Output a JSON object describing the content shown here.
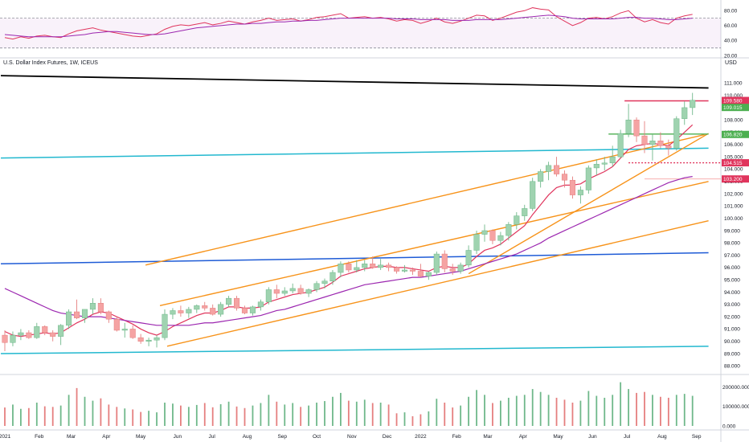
{
  "chart_data": {
    "type": "candlestick",
    "title": "U.S. Dollar Index Futures, 1W, ICEUS",
    "currency_label": "USD",
    "colors": {
      "up_body": "#9fd3b0",
      "down_body": "#f5a3a3",
      "neutral_body": "#787b86",
      "ma_fast": "#e0355d",
      "ma_slow": "#9c27b0",
      "channel": "#f7931a",
      "cyan": "#22b8cf",
      "blue": "#1e5bd6",
      "black": "#000000",
      "red_level": "#e0355d",
      "green_level": "#4caf50",
      "rsi": "#e0355d",
      "rsi_signal": "#9c27b0",
      "vol_up": "#9fd3b0",
      "vol_down": "#f5a3a3"
    },
    "x_labels": [
      "2021",
      "Feb",
      "Mar",
      "Apr",
      "May",
      "Jun",
      "Jul",
      "Aug",
      "Sep",
      "Oct",
      "Nov",
      "Dec",
      "2022",
      "Feb",
      "Mar",
      "Apr",
      "May",
      "Jun",
      "Jul",
      "Aug",
      "Sep"
    ],
    "x_label_weeks": [
      0,
      4.3,
      8.3,
      12.7,
      17,
      21.6,
      25.9,
      30.3,
      34.7,
      39,
      43.4,
      47.8,
      52,
      56.5,
      60.4,
      64.8,
      69.2,
      73.5,
      77.8,
      82.2,
      86.5
    ],
    "price_axis": {
      "min": 87.5,
      "max": 112,
      "ticks": [
        88,
        89,
        90,
        91,
        92,
        93,
        94,
        95,
        96,
        97,
        98,
        99,
        100,
        101,
        102,
        103,
        104,
        105,
        106,
        107,
        108,
        109,
        110,
        111
      ]
    },
    "rsi_axis": {
      "min": 20,
      "max": 90,
      "ticks": [
        20,
        40,
        60,
        80
      ],
      "levels": [
        30,
        70
      ]
    },
    "volume_axis": {
      "min": 0,
      "max": 240000,
      "ticks": [
        0,
        100000,
        200000
      ],
      "tick_labels": [
        "0.000",
        "100000.000",
        "200000.000"
      ]
    },
    "price_tags": [
      {
        "value": 109.58,
        "label": "109.580",
        "color": "#e0355d"
      },
      {
        "value": 109.015,
        "label": "109.015",
        "color": "#4caf50"
      },
      {
        "value": 106.82,
        "label": "106.820",
        "color": "#4caf50"
      },
      {
        "value": 104.515,
        "label": "104.515",
        "color": "#e0355d"
      },
      {
        "value": 103.2,
        "label": "103.200",
        "color": "#e0355d"
      }
    ],
    "candles": [
      {
        "o": 90.5,
        "h": 90.9,
        "l": 89.2,
        "c": 89.9
      },
      {
        "o": 89.9,
        "h": 90.8,
        "l": 89.6,
        "c": 90.5
      },
      {
        "o": 90.5,
        "h": 91.0,
        "l": 90.1,
        "c": 90.7
      },
      {
        "o": 90.7,
        "h": 90.9,
        "l": 90.2,
        "c": 90.3
      },
      {
        "o": 90.3,
        "h": 91.5,
        "l": 90.2,
        "c": 91.2
      },
      {
        "o": 91.2,
        "h": 91.3,
        "l": 90.5,
        "c": 90.7
      },
      {
        "o": 90.7,
        "h": 90.9,
        "l": 90.0,
        "c": 90.4
      },
      {
        "o": 90.4,
        "h": 91.4,
        "l": 89.7,
        "c": 91.3
      },
      {
        "o": 91.3,
        "h": 92.6,
        "l": 91.0,
        "c": 92.4
      },
      {
        "o": 92.4,
        "h": 93.4,
        "l": 91.8,
        "c": 91.9
      },
      {
        "o": 91.9,
        "h": 92.6,
        "l": 91.5,
        "c": 92.6
      },
      {
        "o": 92.6,
        "h": 93.5,
        "l": 92.2,
        "c": 93.1
      },
      {
        "o": 93.1,
        "h": 93.5,
        "l": 92.2,
        "c": 92.4
      },
      {
        "o": 92.4,
        "h": 92.5,
        "l": 91.5,
        "c": 91.8
      },
      {
        "o": 91.8,
        "h": 92.0,
        "l": 90.8,
        "c": 90.9
      },
      {
        "o": 90.9,
        "h": 91.5,
        "l": 90.3,
        "c": 91.0
      },
      {
        "o": 91.0,
        "h": 91.3,
        "l": 90.2,
        "c": 90.3
      },
      {
        "o": 90.3,
        "h": 90.6,
        "l": 89.8,
        "c": 90.0
      },
      {
        "o": 90.0,
        "h": 90.3,
        "l": 89.6,
        "c": 90.1
      },
      {
        "o": 90.1,
        "h": 90.5,
        "l": 89.5,
        "c": 90.3
      },
      {
        "o": 90.3,
        "h": 92.6,
        "l": 90.1,
        "c": 92.2
      },
      {
        "o": 92.2,
        "h": 92.7,
        "l": 91.8,
        "c": 92.5
      },
      {
        "o": 92.5,
        "h": 92.9,
        "l": 92.0,
        "c": 92.3
      },
      {
        "o": 92.3,
        "h": 92.8,
        "l": 91.9,
        "c": 92.6
      },
      {
        "o": 92.6,
        "h": 93.0,
        "l": 92.3,
        "c": 92.9
      },
      {
        "o": 92.9,
        "h": 93.2,
        "l": 92.5,
        "c": 92.7
      },
      {
        "o": 92.7,
        "h": 93.0,
        "l": 92.1,
        "c": 92.2
      },
      {
        "o": 92.2,
        "h": 93.2,
        "l": 92.0,
        "c": 93.0
      },
      {
        "o": 93.0,
        "h": 93.7,
        "l": 92.8,
        "c": 93.5
      },
      {
        "o": 93.5,
        "h": 93.7,
        "l": 92.5,
        "c": 92.7
      },
      {
        "o": 92.7,
        "h": 92.9,
        "l": 92.2,
        "c": 92.3
      },
      {
        "o": 92.3,
        "h": 92.9,
        "l": 92.1,
        "c": 92.8
      },
      {
        "o": 92.8,
        "h": 93.4,
        "l": 92.5,
        "c": 93.2
      },
      {
        "o": 93.2,
        "h": 94.4,
        "l": 93.0,
        "c": 94.2
      },
      {
        "o": 94.2,
        "h": 94.6,
        "l": 93.5,
        "c": 93.9
      },
      {
        "o": 93.9,
        "h": 94.4,
        "l": 93.7,
        "c": 94.1
      },
      {
        "o": 94.1,
        "h": 94.7,
        "l": 93.9,
        "c": 94.3
      },
      {
        "o": 94.3,
        "h": 94.6,
        "l": 93.8,
        "c": 93.9
      },
      {
        "o": 93.9,
        "h": 94.3,
        "l": 93.6,
        "c": 94.2
      },
      {
        "o": 94.2,
        "h": 94.9,
        "l": 94.0,
        "c": 94.7
      },
      {
        "o": 94.7,
        "h": 95.1,
        "l": 94.3,
        "c": 94.9
      },
      {
        "o": 94.9,
        "h": 95.8,
        "l": 94.6,
        "c": 95.6
      },
      {
        "o": 95.6,
        "h": 96.5,
        "l": 95.2,
        "c": 96.3
      },
      {
        "o": 96.3,
        "h": 96.5,
        "l": 95.6,
        "c": 95.8
      },
      {
        "o": 95.8,
        "h": 96.6,
        "l": 95.6,
        "c": 96.0
      },
      {
        "o": 96.0,
        "h": 96.6,
        "l": 95.7,
        "c": 96.3
      },
      {
        "o": 96.3,
        "h": 96.9,
        "l": 95.9,
        "c": 96.0
      },
      {
        "o": 96.0,
        "h": 96.7,
        "l": 95.8,
        "c": 96.2
      },
      {
        "o": 96.2,
        "h": 96.4,
        "l": 95.7,
        "c": 96.0
      },
      {
        "o": 96.0,
        "h": 96.1,
        "l": 95.5,
        "c": 95.7
      },
      {
        "o": 95.7,
        "h": 96.2,
        "l": 95.6,
        "c": 95.8
      },
      {
        "o": 95.8,
        "h": 96.0,
        "l": 95.4,
        "c": 95.7
      },
      {
        "o": 95.7,
        "h": 96.3,
        "l": 95.2,
        "c": 95.3
      },
      {
        "o": 95.3,
        "h": 95.7,
        "l": 95.0,
        "c": 95.6
      },
      {
        "o": 95.6,
        "h": 97.3,
        "l": 95.4,
        "c": 97.1
      },
      {
        "o": 97.1,
        "h": 97.4,
        "l": 95.6,
        "c": 95.9
      },
      {
        "o": 95.9,
        "h": 96.3,
        "l": 95.4,
        "c": 95.7
      },
      {
        "o": 95.7,
        "h": 96.4,
        "l": 95.5,
        "c": 96.2
      },
      {
        "o": 96.2,
        "h": 97.8,
        "l": 96.0,
        "c": 97.4
      },
      {
        "o": 97.4,
        "h": 99.0,
        "l": 97.1,
        "c": 98.7
      },
      {
        "o": 98.7,
        "h": 99.5,
        "l": 98.1,
        "c": 99.0
      },
      {
        "o": 99.0,
        "h": 99.1,
        "l": 97.9,
        "c": 98.2
      },
      {
        "o": 98.2,
        "h": 98.9,
        "l": 97.8,
        "c": 98.6
      },
      {
        "o": 98.6,
        "h": 99.7,
        "l": 98.2,
        "c": 99.5
      },
      {
        "o": 99.5,
        "h": 100.5,
        "l": 99.1,
        "c": 100.2
      },
      {
        "o": 100.2,
        "h": 101.1,
        "l": 99.8,
        "c": 100.8
      },
      {
        "o": 100.8,
        "h": 103.3,
        "l": 100.6,
        "c": 103.0
      },
      {
        "o": 103.0,
        "h": 104.0,
        "l": 102.5,
        "c": 103.8
      },
      {
        "o": 103.8,
        "h": 104.6,
        "l": 103.1,
        "c": 104.3
      },
      {
        "o": 104.3,
        "h": 105.0,
        "l": 103.4,
        "c": 103.6
      },
      {
        "o": 103.6,
        "h": 103.9,
        "l": 102.5,
        "c": 103.1
      },
      {
        "o": 103.1,
        "h": 103.4,
        "l": 101.6,
        "c": 101.9
      },
      {
        "o": 101.9,
        "h": 102.6,
        "l": 101.2,
        "c": 102.3
      },
      {
        "o": 102.3,
        "h": 104.3,
        "l": 102.0,
        "c": 104.1
      },
      {
        "o": 104.1,
        "h": 104.8,
        "l": 103.5,
        "c": 104.4
      },
      {
        "o": 104.4,
        "h": 105.0,
        "l": 103.9,
        "c": 104.5
      },
      {
        "o": 104.5,
        "h": 105.9,
        "l": 104.2,
        "c": 105.0
      },
      {
        "o": 105.0,
        "h": 107.2,
        "l": 104.9,
        "c": 106.9
      },
      {
        "o": 106.9,
        "h": 109.3,
        "l": 106.6,
        "c": 108.0
      },
      {
        "o": 108.0,
        "h": 108.2,
        "l": 106.2,
        "c": 106.7
      },
      {
        "o": 106.7,
        "h": 107.9,
        "l": 105.3,
        "c": 106.0
      },
      {
        "o": 106.0,
        "h": 106.8,
        "l": 104.7,
        "c": 106.3
      },
      {
        "o": 106.3,
        "h": 107.0,
        "l": 105.7,
        "c": 105.9
      },
      {
        "o": 105.9,
        "h": 106.4,
        "l": 105.1,
        "c": 105.7
      },
      {
        "o": 105.7,
        "h": 108.3,
        "l": 105.5,
        "c": 108.1
      },
      {
        "o": 108.1,
        "h": 109.5,
        "l": 107.6,
        "c": 109.0
      },
      {
        "o": 109.0,
        "h": 110.2,
        "l": 108.4,
        "c": 109.6
      }
    ],
    "ma_fast": [
      90.8,
      90.5,
      90.4,
      90.5,
      90.6,
      90.7,
      90.6,
      90.7,
      91.1,
      91.5,
      91.8,
      92.2,
      92.4,
      92.3,
      92.0,
      91.7,
      91.4,
      91.0,
      90.7,
      90.5,
      90.8,
      91.2,
      91.5,
      91.8,
      92.1,
      92.3,
      92.3,
      92.5,
      92.8,
      92.8,
      92.7,
      92.7,
      92.8,
      93.2,
      93.4,
      93.6,
      93.8,
      93.9,
      94.0,
      94.2,
      94.4,
      94.8,
      95.3,
      95.5,
      95.7,
      95.9,
      96.0,
      96.1,
      96.1,
      96.0,
      96.0,
      95.9,
      95.8,
      95.7,
      96.0,
      96.1,
      96.0,
      96.0,
      96.3,
      96.9,
      97.4,
      97.6,
      97.9,
      98.4,
      98.9,
      99.4,
      100.3,
      101.1,
      101.9,
      102.5,
      102.7,
      102.7,
      102.8,
      103.2,
      103.5,
      103.8,
      104.2,
      104.9,
      105.6,
      105.9,
      106.0,
      106.1,
      106.0,
      105.9,
      106.4,
      107.0,
      107.6
    ],
    "ma_slow": [
      94.3,
      94.0,
      93.7,
      93.4,
      93.1,
      92.8,
      92.5,
      92.3,
      92.2,
      92.1,
      92.0,
      92.0,
      92.0,
      91.9,
      91.8,
      91.7,
      91.6,
      91.5,
      91.4,
      91.3,
      91.3,
      91.3,
      91.3,
      91.3,
      91.4,
      91.5,
      91.5,
      91.6,
      91.7,
      91.8,
      91.9,
      92.0,
      92.1,
      92.3,
      92.5,
      92.6,
      92.8,
      93.0,
      93.2,
      93.4,
      93.6,
      93.8,
      94.0,
      94.2,
      94.4,
      94.6,
      94.7,
      94.8,
      94.9,
      95.0,
      95.1,
      95.2,
      95.2,
      95.3,
      95.4,
      95.5,
      95.6,
      95.7,
      95.9,
      96.1,
      96.3,
      96.5,
      96.7,
      96.9,
      97.1,
      97.4,
      97.7,
      98.0,
      98.4,
      98.7,
      99.0,
      99.3,
      99.6,
      99.9,
      100.2,
      100.5,
      100.8,
      101.1,
      101.4,
      101.7,
      102.0,
      102.3,
      102.6,
      102.9,
      103.1,
      103.3,
      103.4
    ],
    "rsi": [
      44,
      42,
      45,
      43,
      46,
      47,
      45,
      44,
      49,
      53,
      55,
      57,
      54,
      52,
      50,
      48,
      46,
      45,
      47,
      49,
      55,
      59,
      61,
      60,
      62,
      64,
      61,
      63,
      66,
      64,
      62,
      65,
      67,
      70,
      67,
      68,
      69,
      66,
      68,
      71,
      72,
      74,
      76,
      70,
      71,
      72,
      70,
      71,
      69,
      66,
      68,
      67,
      63,
      66,
      70,
      65,
      63,
      66,
      70,
      74,
      73,
      67,
      70,
      74,
      78,
      80,
      84,
      82,
      81,
      72,
      66,
      60,
      64,
      70,
      71,
      69,
      72,
      77,
      80,
      70,
      65,
      68,
      64,
      62,
      70,
      73,
      75
    ],
    "rsi_signal": [
      48,
      47,
      46,
      45,
      45,
      45,
      45,
      45,
      46,
      47,
      48,
      50,
      51,
      52,
      52,
      51,
      50,
      49,
      48,
      48,
      49,
      51,
      53,
      55,
      57,
      58,
      59,
      60,
      61,
      62,
      62,
      63,
      63,
      64,
      65,
      65,
      66,
      66,
      67,
      67,
      68,
      69,
      70,
      70,
      70,
      70,
      70,
      70,
      70,
      69,
      69,
      69,
      68,
      68,
      68,
      68,
      67,
      67,
      67,
      68,
      68,
      68,
      68,
      69,
      70,
      71,
      72,
      73,
      74,
      73,
      72,
      70,
      69,
      69,
      69,
      69,
      69,
      70,
      71,
      71,
      70,
      70,
      69,
      68,
      68,
      69,
      70
    ],
    "volume": [
      95000,
      110000,
      88000,
      92000,
      120000,
      101000,
      98000,
      105000,
      160000,
      195000,
      150000,
      130000,
      142000,
      110000,
      98000,
      90000,
      85000,
      72000,
      78000,
      70000,
      120000,
      115000,
      105000,
      98000,
      108000,
      118000,
      96000,
      112000,
      125000,
      100000,
      92000,
      105000,
      118000,
      160000,
      125000,
      110000,
      118000,
      98000,
      105000,
      120000,
      128000,
      150000,
      170000,
      130000,
      125000,
      135000,
      118000,
      120000,
      110000,
      65000,
      70000,
      50000,
      60000,
      75000,
      140000,
      120000,
      95000,
      105000,
      150000,
      185000,
      160000,
      118000,
      130000,
      145000,
      155000,
      160000,
      190000,
      175000,
      160000,
      145000,
      135000,
      120000,
      130000,
      180000,
      155000,
      145000,
      160000,
      225000,
      190000,
      170000,
      175000,
      160000,
      150000,
      145000,
      160000,
      165000,
      155000
    ],
    "drawn_lines": [
      {
        "name": "black-trend-line",
        "color": "#000000",
        "p1": [
          -0.5,
          111.6
        ],
        "p2": [
          88,
          110.6
        ],
        "width": 1.8
      },
      {
        "name": "cyan-upper-line",
        "color": "#22b8cf",
        "p1": [
          -0.5,
          104.9
        ],
        "p2": [
          88,
          105.7
        ],
        "width": 1.5
      },
      {
        "name": "cyan-lower-line",
        "color": "#22b8cf",
        "p1": [
          -0.5,
          89.0
        ],
        "p2": [
          88,
          89.6
        ],
        "width": 1.5
      },
      {
        "name": "blue-horizontal-line",
        "color": "#1e5bd6",
        "p1": [
          -0.5,
          96.3
        ],
        "p2": [
          88,
          97.2
        ],
        "width": 1.5
      },
      {
        "name": "channel-upper-line",
        "color": "#f7931a",
        "p1": [
          17.6,
          96.2
        ],
        "p2": [
          87.5,
          106.8
        ],
        "width": 1.4
      },
      {
        "name": "channel-middle-line",
        "color": "#f7931a",
        "p1": [
          19.4,
          92.9
        ],
        "p2": [
          88,
          103.0
        ],
        "width": 1.4
      },
      {
        "name": "channel-lower-line",
        "color": "#f7931a",
        "p1": [
          20.3,
          89.6
        ],
        "p2": [
          88,
          99.8
        ],
        "width": 1.4
      },
      {
        "name": "channel-top-segment",
        "color": "#f7931a",
        "p1": [
          58,
          95.5
        ],
        "p2": [
          88,
          106.9
        ],
        "width": 1.4
      },
      {
        "name": "red-resistance-line",
        "color": "#e0355d",
        "p1": [
          77.5,
          109.55
        ],
        "p2": [
          88,
          109.55
        ],
        "width": 1.4
      },
      {
        "name": "green-support-line",
        "color": "#4caf50",
        "p1": [
          75.5,
          106.85
        ],
        "p2": [
          88,
          106.85
        ],
        "width": 1.4
      }
    ]
  }
}
